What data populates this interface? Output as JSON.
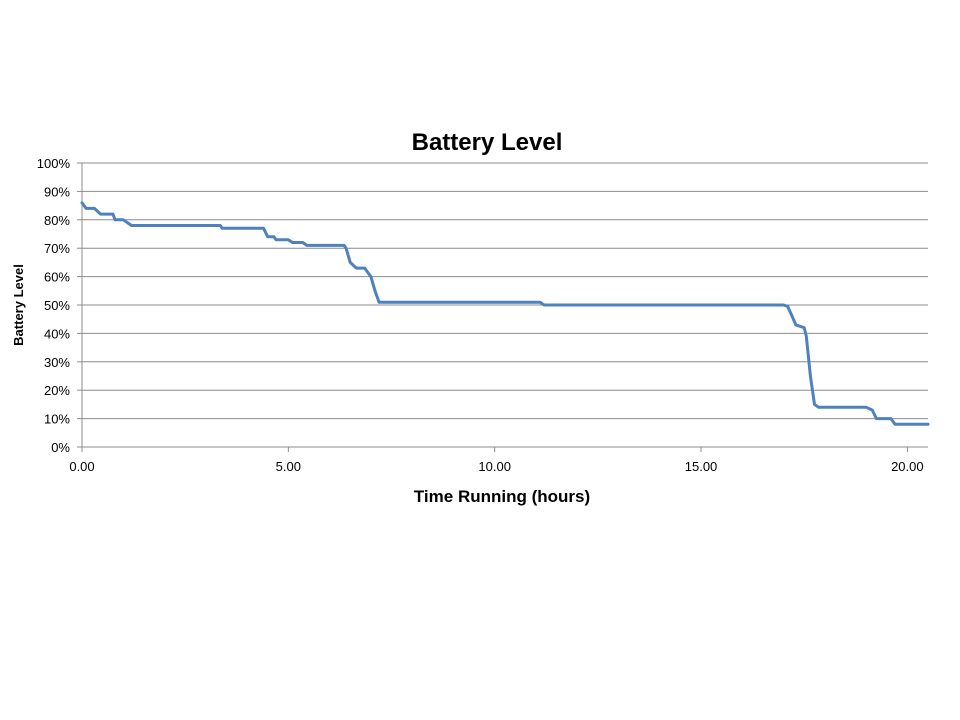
{
  "chart_data": {
    "type": "line",
    "title": "Battery Level",
    "xlabel": "Time Running (hours)",
    "ylabel": "Battery Level",
    "xlim": [
      0,
      20.5
    ],
    "ylim": [
      0,
      1.0
    ],
    "x_ticks": [
      0,
      5,
      10,
      15,
      20
    ],
    "x_tick_labels": [
      "0.00",
      "5.00",
      "10.00",
      "15.00",
      "20.00"
    ],
    "y_ticks": [
      0,
      0.1,
      0.2,
      0.3,
      0.4,
      0.5,
      0.6,
      0.7,
      0.8,
      0.9,
      1.0
    ],
    "y_tick_labels": [
      "0%",
      "10%",
      "20%",
      "30%",
      "40%",
      "50%",
      "60%",
      "70%",
      "80%",
      "90%",
      "100%"
    ],
    "grid": true,
    "legend": "none",
    "series": [
      {
        "color": "#4f81bd",
        "x": [
          0,
          0.1,
          0.3,
          0.45,
          0.75,
          0.8,
          1.0,
          1.2,
          3.35,
          3.4,
          4.4,
          4.5,
          4.65,
          4.7,
          5.0,
          5.1,
          5.35,
          5.45,
          6.35,
          6.4,
          6.5,
          6.65,
          6.85,
          7.0,
          7.1,
          7.2,
          11.1,
          11.2,
          17.0,
          17.1,
          17.3,
          17.5,
          17.55,
          17.65,
          17.75,
          17.85,
          19.0,
          19.15,
          19.25,
          19.6,
          19.7,
          20.5
        ],
        "y": [
          0.86,
          0.84,
          0.84,
          0.82,
          0.82,
          0.8,
          0.8,
          0.78,
          0.78,
          0.77,
          0.77,
          0.74,
          0.74,
          0.73,
          0.73,
          0.72,
          0.72,
          0.71,
          0.71,
          0.7,
          0.65,
          0.63,
          0.63,
          0.6,
          0.55,
          0.51,
          0.51,
          0.5,
          0.5,
          0.495,
          0.43,
          0.42,
          0.39,
          0.25,
          0.15,
          0.14,
          0.14,
          0.13,
          0.1,
          0.1,
          0.08,
          0.08
        ]
      }
    ]
  }
}
